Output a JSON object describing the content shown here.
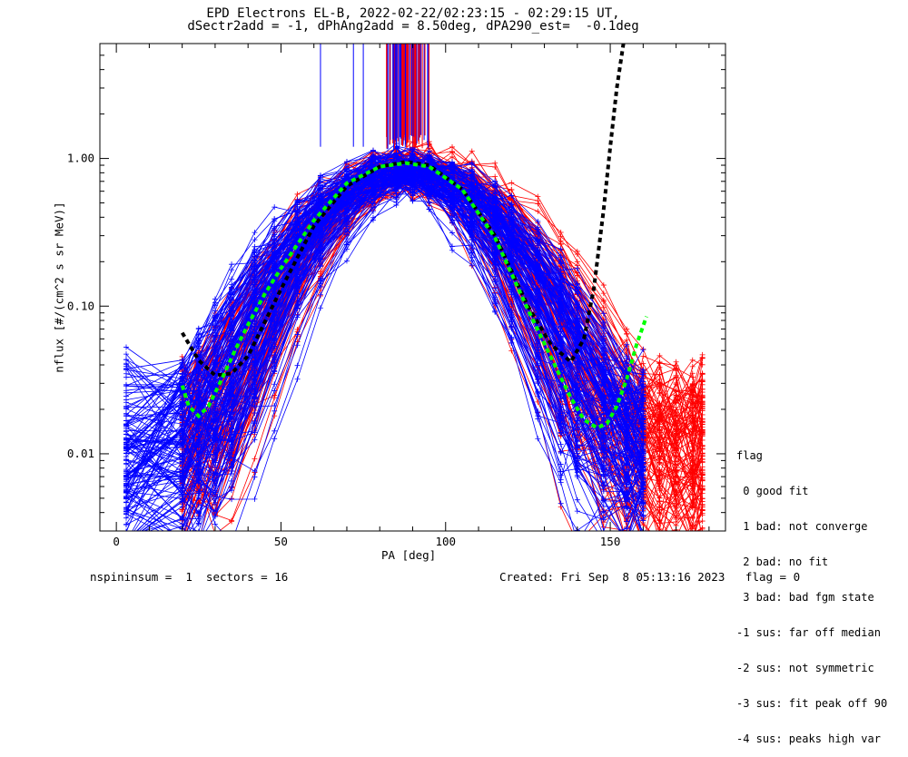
{
  "chart_data": {
    "type": "line",
    "title_line1": "EPD Electrons EL-B, 2022-02-22/02:23:15 - 02:29:15 UT,",
    "title_line2": "dSectr2add = -1, dPhAng2add = 8.50deg, dPA290_est=  -0.1deg",
    "xlabel": "PA [deg]",
    "ylabel": "nflux [#/(cm^2 s sr MeV)]",
    "xlim": [
      -5,
      185
    ],
    "ylim": [
      0.003,
      6
    ],
    "yscale": "log",
    "x_ticks": [
      0,
      50,
      100,
      150
    ],
    "y_ticks": [
      {
        "value": 1.0,
        "label": "1.00"
      },
      {
        "value": 0.1,
        "label": "0.10"
      },
      {
        "value": 0.01,
        "label": "0.01"
      }
    ],
    "fit_black": {
      "color": "#000000",
      "x": [
        20,
        25,
        30,
        35,
        40,
        50,
        60,
        70,
        80,
        88,
        95,
        105,
        115,
        125,
        132,
        138,
        142,
        145,
        148,
        150,
        152,
        154
      ],
      "y": [
        0.066,
        0.043,
        0.034,
        0.035,
        0.046,
        0.13,
        0.35,
        0.65,
        0.88,
        0.95,
        0.9,
        0.62,
        0.3,
        0.1,
        0.055,
        0.042,
        0.06,
        0.13,
        0.45,
        1.2,
        3.0,
        6.0
      ]
    },
    "fit_green": {
      "color": "#00ff00",
      "x": [
        20,
        22,
        25,
        28,
        32,
        36,
        40,
        45,
        50,
        60,
        70,
        80,
        88,
        95,
        105,
        115,
        125,
        132,
        138,
        142,
        146,
        149,
        152,
        155,
        158,
        161
      ],
      "y": [
        0.029,
        0.021,
        0.018,
        0.021,
        0.032,
        0.05,
        0.075,
        0.12,
        0.18,
        0.38,
        0.68,
        0.88,
        0.93,
        0.88,
        0.62,
        0.29,
        0.095,
        0.045,
        0.024,
        0.017,
        0.015,
        0.016,
        0.021,
        0.032,
        0.055,
        0.085
      ]
    },
    "spikes": {
      "x_range": [
        82,
        95
      ],
      "top": 6,
      "bottom_range": [
        1.15,
        1.45
      ],
      "isolated_x": [
        62,
        72,
        75
      ]
    },
    "series": [
      {
        "color": "#ff0000",
        "count": 110,
        "x_nodes": [
          20,
          25,
          30,
          35,
          42,
          48,
          55,
          62,
          70,
          78,
          85,
          90,
          95,
          102,
          108,
          115,
          120,
          128,
          135,
          140,
          148,
          155,
          160,
          165,
          170,
          175,
          178
        ],
        "center_pa": 90,
        "peak": 0.9,
        "width_deg": 20
      },
      {
        "color": "#0000ff",
        "count": 150,
        "x_nodes": [
          3,
          20,
          25,
          30,
          35,
          42,
          48,
          55,
          62,
          70,
          78,
          85,
          90,
          95,
          102,
          108,
          115,
          120,
          128,
          135,
          140,
          148,
          155,
          160
        ],
        "center_pa": 88,
        "peak": 0.88,
        "width_deg": 20
      }
    ],
    "colors": {
      "red": "#ff0000",
      "blue": "#0000ff",
      "green": "#00ff00",
      "black": "#000000"
    }
  },
  "legend": {
    "title": "flag",
    "items": [
      " 0 good fit",
      " 1 bad: not converge",
      " 2 bad: no fit",
      " 3 bad: bad fgm state",
      "-1 sus: far off median",
      "-2 sus: not symmetric",
      "-3 sus: fit peak off 90",
      "-4 sus: peaks high var"
    ]
  },
  "footer": {
    "left": "nspininsum =  1  sectors = 16",
    "right": "Created: Fri Sep  8 05:13:16 2023   flag = 0"
  }
}
